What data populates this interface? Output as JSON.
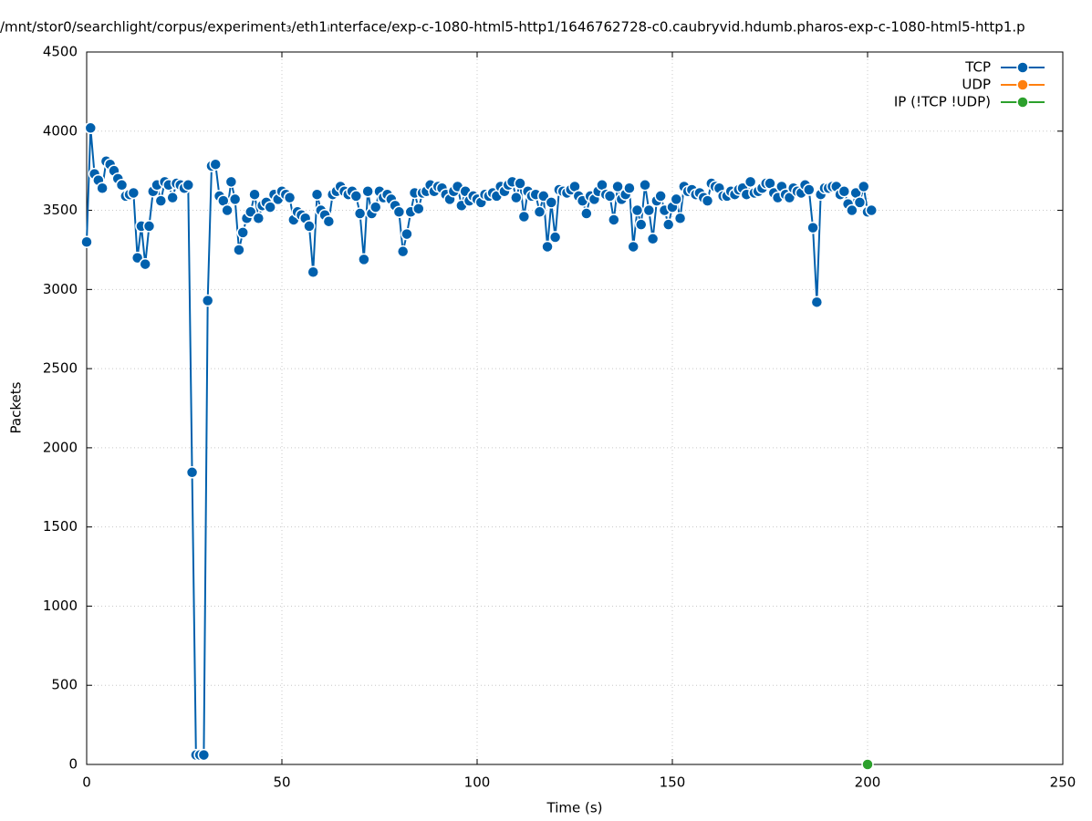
{
  "chart_data": {
    "type": "line",
    "title": "/mnt/stor0/searchlight/corpus/experiment₃/eth1ᵢnterface/exp-c-1080-html5-http1/1646762728-c0.caubryvid.hdumb.pharos-exp-c-1080-html5-http1.p",
    "x_label": "Time (s)",
    "y_label": "Packets",
    "xlim": [
      0,
      250
    ],
    "xticks": [
      0,
      50,
      100,
      150,
      200,
      250
    ],
    "ylim": [
      0,
      4500
    ],
    "yticks": [
      0,
      500,
      1000,
      1500,
      2000,
      2500,
      3000,
      3500,
      4000,
      4500
    ],
    "grid": true,
    "legend": "top-right",
    "series": [
      {
        "name": "TCP",
        "color": "#0060ad",
        "x": [
          0,
          1,
          2,
          3,
          4,
          5,
          6,
          7,
          8,
          9,
          10,
          11,
          12,
          13,
          14,
          15,
          16,
          17,
          18,
          19,
          20,
          21,
          22,
          23,
          24,
          25,
          26,
          27,
          28,
          29,
          30,
          31,
          32,
          33,
          34,
          35,
          36,
          37,
          38,
          39,
          40,
          41,
          42,
          43,
          44,
          45,
          46,
          47,
          48,
          49,
          50,
          51,
          52,
          53,
          54,
          55,
          56,
          57,
          58,
          59,
          60,
          61,
          62,
          63,
          64,
          65,
          66,
          67,
          68,
          69,
          70,
          71,
          72,
          73,
          74,
          75,
          76,
          77,
          78,
          79,
          80,
          81,
          82,
          83,
          84,
          85,
          86,
          87,
          88,
          89,
          90,
          91,
          92,
          93,
          94,
          95,
          96,
          97,
          98,
          99,
          100,
          101,
          102,
          103,
          104,
          105,
          106,
          107,
          108,
          109,
          110,
          111,
          112,
          113,
          114,
          115,
          116,
          117,
          118,
          119,
          120,
          121,
          122,
          123,
          124,
          125,
          126,
          127,
          128,
          129,
          130,
          131,
          132,
          133,
          134,
          135,
          136,
          137,
          138,
          139,
          140,
          141,
          142,
          143,
          144,
          145,
          146,
          147,
          148,
          149,
          150,
          151,
          152,
          153,
          154,
          155,
          156,
          157,
          158,
          159,
          160,
          161,
          162,
          163,
          164,
          165,
          166,
          167,
          168,
          169,
          170,
          171,
          172,
          173,
          174,
          175,
          176,
          177,
          178,
          179,
          180,
          181,
          182,
          183,
          184,
          185,
          186,
          187,
          188,
          189,
          190,
          191,
          192,
          193,
          194,
          195,
          196,
          197,
          198,
          199,
          200,
          201
        ],
        "values": [
          3300,
          4020,
          3730,
          3690,
          3640,
          3810,
          3790,
          3750,
          3700,
          3660,
          3590,
          3600,
          3610,
          3200,
          3400,
          3160,
          3400,
          3620,
          3660,
          3560,
          3680,
          3660,
          3580,
          3670,
          3660,
          3640,
          3660,
          1845,
          60,
          60,
          60,
          2930,
          3780,
          3790,
          3590,
          3560,
          3500,
          3680,
          3570,
          3250,
          3360,
          3450,
          3490,
          3600,
          3450,
          3530,
          3550,
          3520,
          3600,
          3570,
          3620,
          3600,
          3580,
          3440,
          3490,
          3470,
          3450,
          3400,
          3110,
          3600,
          3500,
          3470,
          3430,
          3600,
          3620,
          3650,
          3620,
          3600,
          3620,
          3590,
          3480,
          3190,
          3620,
          3480,
          3520,
          3620,
          3580,
          3600,
          3570,
          3530,
          3490,
          3240,
          3350,
          3490,
          3610,
          3510,
          3610,
          3620,
          3660,
          3620,
          3650,
          3640,
          3600,
          3570,
          3620,
          3650,
          3530,
          3620,
          3560,
          3590,
          3570,
          3550,
          3600,
          3590,
          3610,
          3590,
          3650,
          3620,
          3660,
          3680,
          3580,
          3670,
          3460,
          3620,
          3590,
          3600,
          3490,
          3590,
          3270,
          3550,
          3330,
          3630,
          3620,
          3610,
          3630,
          3650,
          3590,
          3560,
          3480,
          3590,
          3570,
          3620,
          3660,
          3600,
          3590,
          3440,
          3650,
          3570,
          3600,
          3640,
          3270,
          3500,
          3410,
          3660,
          3500,
          3320,
          3560,
          3590,
          3500,
          3410,
          3520,
          3570,
          3450,
          3650,
          3620,
          3630,
          3600,
          3610,
          3580,
          3560,
          3670,
          3650,
          3640,
          3590,
          3590,
          3620,
          3600,
          3630,
          3640,
          3600,
          3680,
          3610,
          3620,
          3640,
          3670,
          3670,
          3610,
          3580,
          3650,
          3600,
          3580,
          3640,
          3620,
          3610,
          3660,
          3630,
          3390,
          2920,
          3600,
          3640,
          3640,
          3650,
          3650,
          3600,
          3620,
          3540,
          3500,
          3610,
          3550,
          3650,
          3490,
          3500
        ]
      },
      {
        "name": "UDP",
        "color": "#ff7f0e",
        "x": [],
        "values": []
      },
      {
        "name": "IP (!TCP  !UDP)",
        "color": "#2ca02c",
        "x": [
          200
        ],
        "values": [
          0
        ]
      }
    ]
  }
}
